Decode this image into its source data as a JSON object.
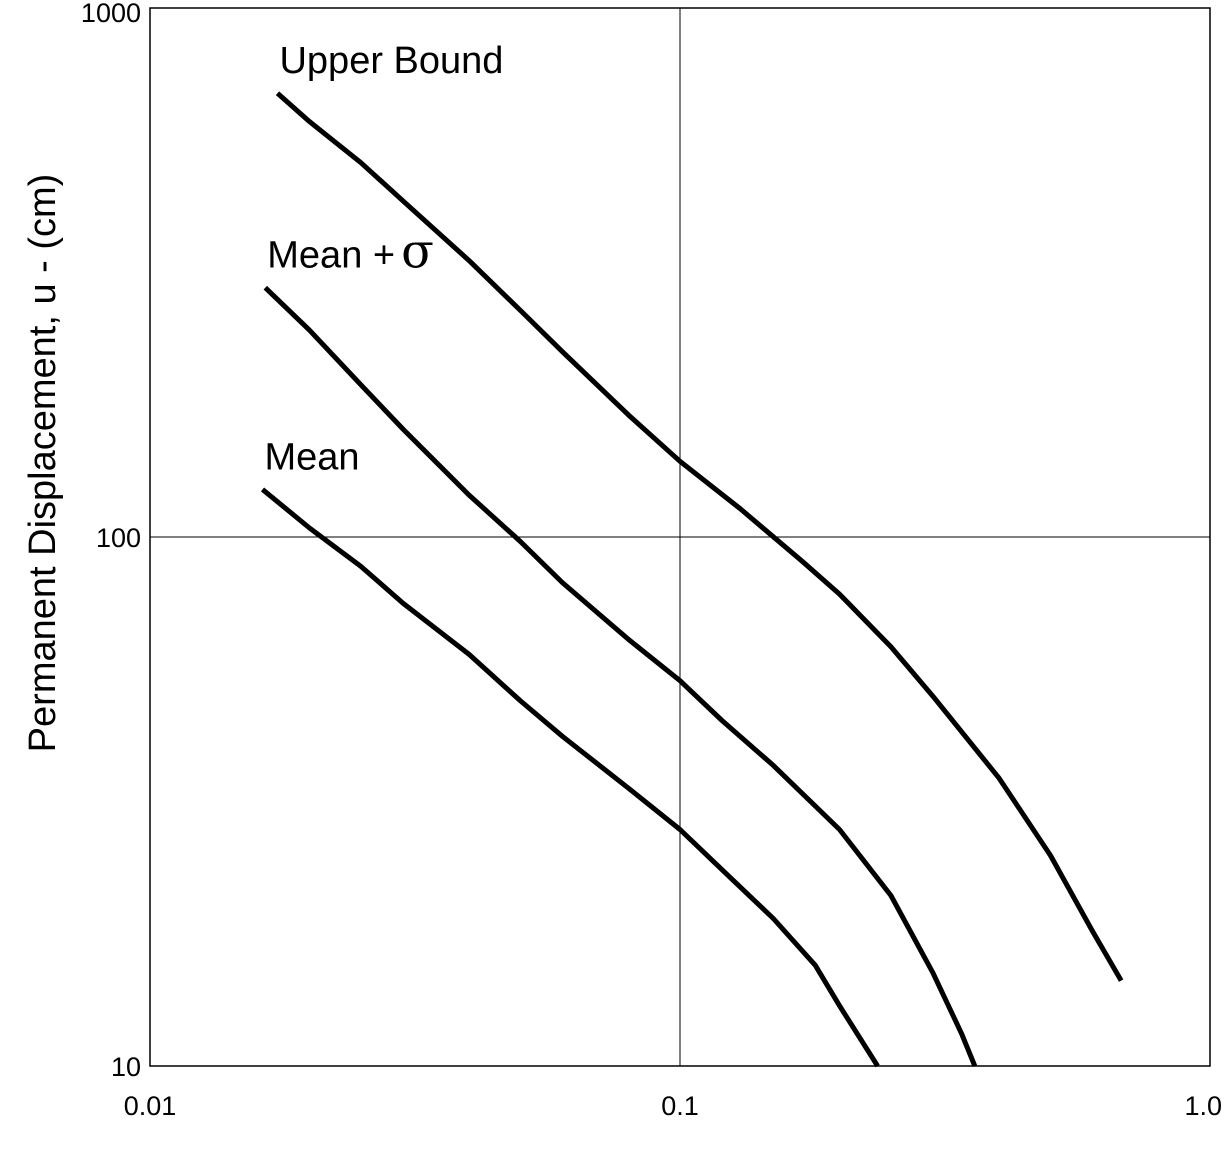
{
  "chart_data": {
    "type": "line",
    "title": "",
    "xlabel": "",
    "ylabel": "Permanent Displacement, u - (cm)",
    "xscale": "log",
    "yscale": "log",
    "xlim": [
      0.01,
      1.0
    ],
    "ylim": [
      10,
      1000
    ],
    "grid": true,
    "legend": "inline labels near start of each curve",
    "x_tick_labels": [
      {
        "value": 0.01,
        "label": "0.01"
      },
      {
        "value": 0.1,
        "label": "0.1"
      },
      {
        "value": 1.0,
        "label": "1.0"
      }
    ],
    "y_tick_labels": [
      {
        "value": 10,
        "label": "10"
      },
      {
        "value": 100,
        "label": "100"
      },
      {
        "value": 1000,
        "label": "1000"
      }
    ],
    "series": [
      {
        "name": "Upper Bound",
        "label_text": "Upper Bound",
        "points": [
          [
            0.0174,
            690
          ],
          [
            0.02,
            610
          ],
          [
            0.025,
            510
          ],
          [
            0.03,
            432
          ],
          [
            0.04,
            333
          ],
          [
            0.05,
            268
          ],
          [
            0.06,
            224
          ],
          [
            0.08,
            170
          ],
          [
            0.1,
            139
          ],
          [
            0.13,
            113
          ],
          [
            0.17,
            90
          ],
          [
            0.2,
            78
          ],
          [
            0.25,
            62
          ],
          [
            0.3,
            50
          ],
          [
            0.4,
            35
          ],
          [
            0.5,
            25
          ],
          [
            0.6,
            18
          ],
          [
            0.68,
            14.5
          ]
        ]
      },
      {
        "name": "Mean + σ",
        "label_text": "Mean +",
        "label_symbol": "σ",
        "points": [
          [
            0.0165,
            296
          ],
          [
            0.02,
            246
          ],
          [
            0.025,
            194
          ],
          [
            0.03,
            160
          ],
          [
            0.04,
            120
          ],
          [
            0.05,
            98
          ],
          [
            0.06,
            82
          ],
          [
            0.08,
            64
          ],
          [
            0.1,
            53.5
          ],
          [
            0.12,
            45
          ],
          [
            0.15,
            37
          ],
          [
            0.2,
            28
          ],
          [
            0.25,
            21
          ],
          [
            0.3,
            15
          ],
          [
            0.34,
            11.5
          ],
          [
            0.36,
            10
          ]
        ]
      },
      {
        "name": "Mean",
        "label_text": "Mean",
        "points": [
          [
            0.0163,
            123
          ],
          [
            0.02,
            104
          ],
          [
            0.025,
            88
          ],
          [
            0.03,
            75
          ],
          [
            0.04,
            60
          ],
          [
            0.05,
            49
          ],
          [
            0.06,
            42
          ],
          [
            0.08,
            33.5
          ],
          [
            0.1,
            28
          ],
          [
            0.12,
            23.5
          ],
          [
            0.15,
            19
          ],
          [
            0.18,
            15.5
          ],
          [
            0.2,
            13
          ],
          [
            0.236,
            10
          ]
        ]
      }
    ]
  }
}
